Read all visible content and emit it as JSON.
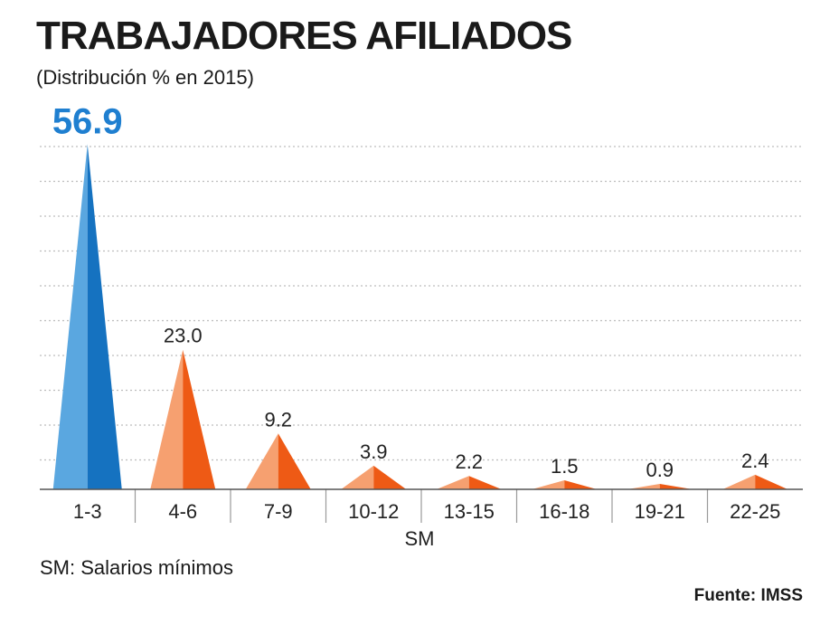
{
  "header": {
    "title": "TRABAJADORES AFILIADOS",
    "subtitle": "(Distribución % en 2015)"
  },
  "footer": {
    "note": "SM: Salarios mínimos",
    "source": "Fuente: IMSS"
  },
  "colors": {
    "highlight_light": "#5aa7e0",
    "highlight_dark": "#1572c0",
    "highlight_label": "#1f7fd0",
    "bar_light": "#f6a070",
    "bar_dark": "#ee5a15",
    "grid": "#bdbdbd",
    "axis": "#555555"
  },
  "chart_data": {
    "type": "bar",
    "mark_shape": "triangle",
    "xlabel": "SM",
    "ylabel": "",
    "categories": [
      "1-3",
      "4-6",
      "7-9",
      "10-12",
      "13-15",
      "16-18",
      "19-21",
      "22-25"
    ],
    "values": [
      56.9,
      23.0,
      9.2,
      3.9,
      2.2,
      1.5,
      0.9,
      2.4
    ],
    "value_labels": [
      "56.9",
      "23.0",
      "9.2",
      "3.9",
      "2.2",
      "1.5",
      "0.9",
      "2.4"
    ],
    "highlight_index": 0,
    "ylim": [
      0,
      60
    ],
    "grid": true,
    "legend": "none"
  }
}
